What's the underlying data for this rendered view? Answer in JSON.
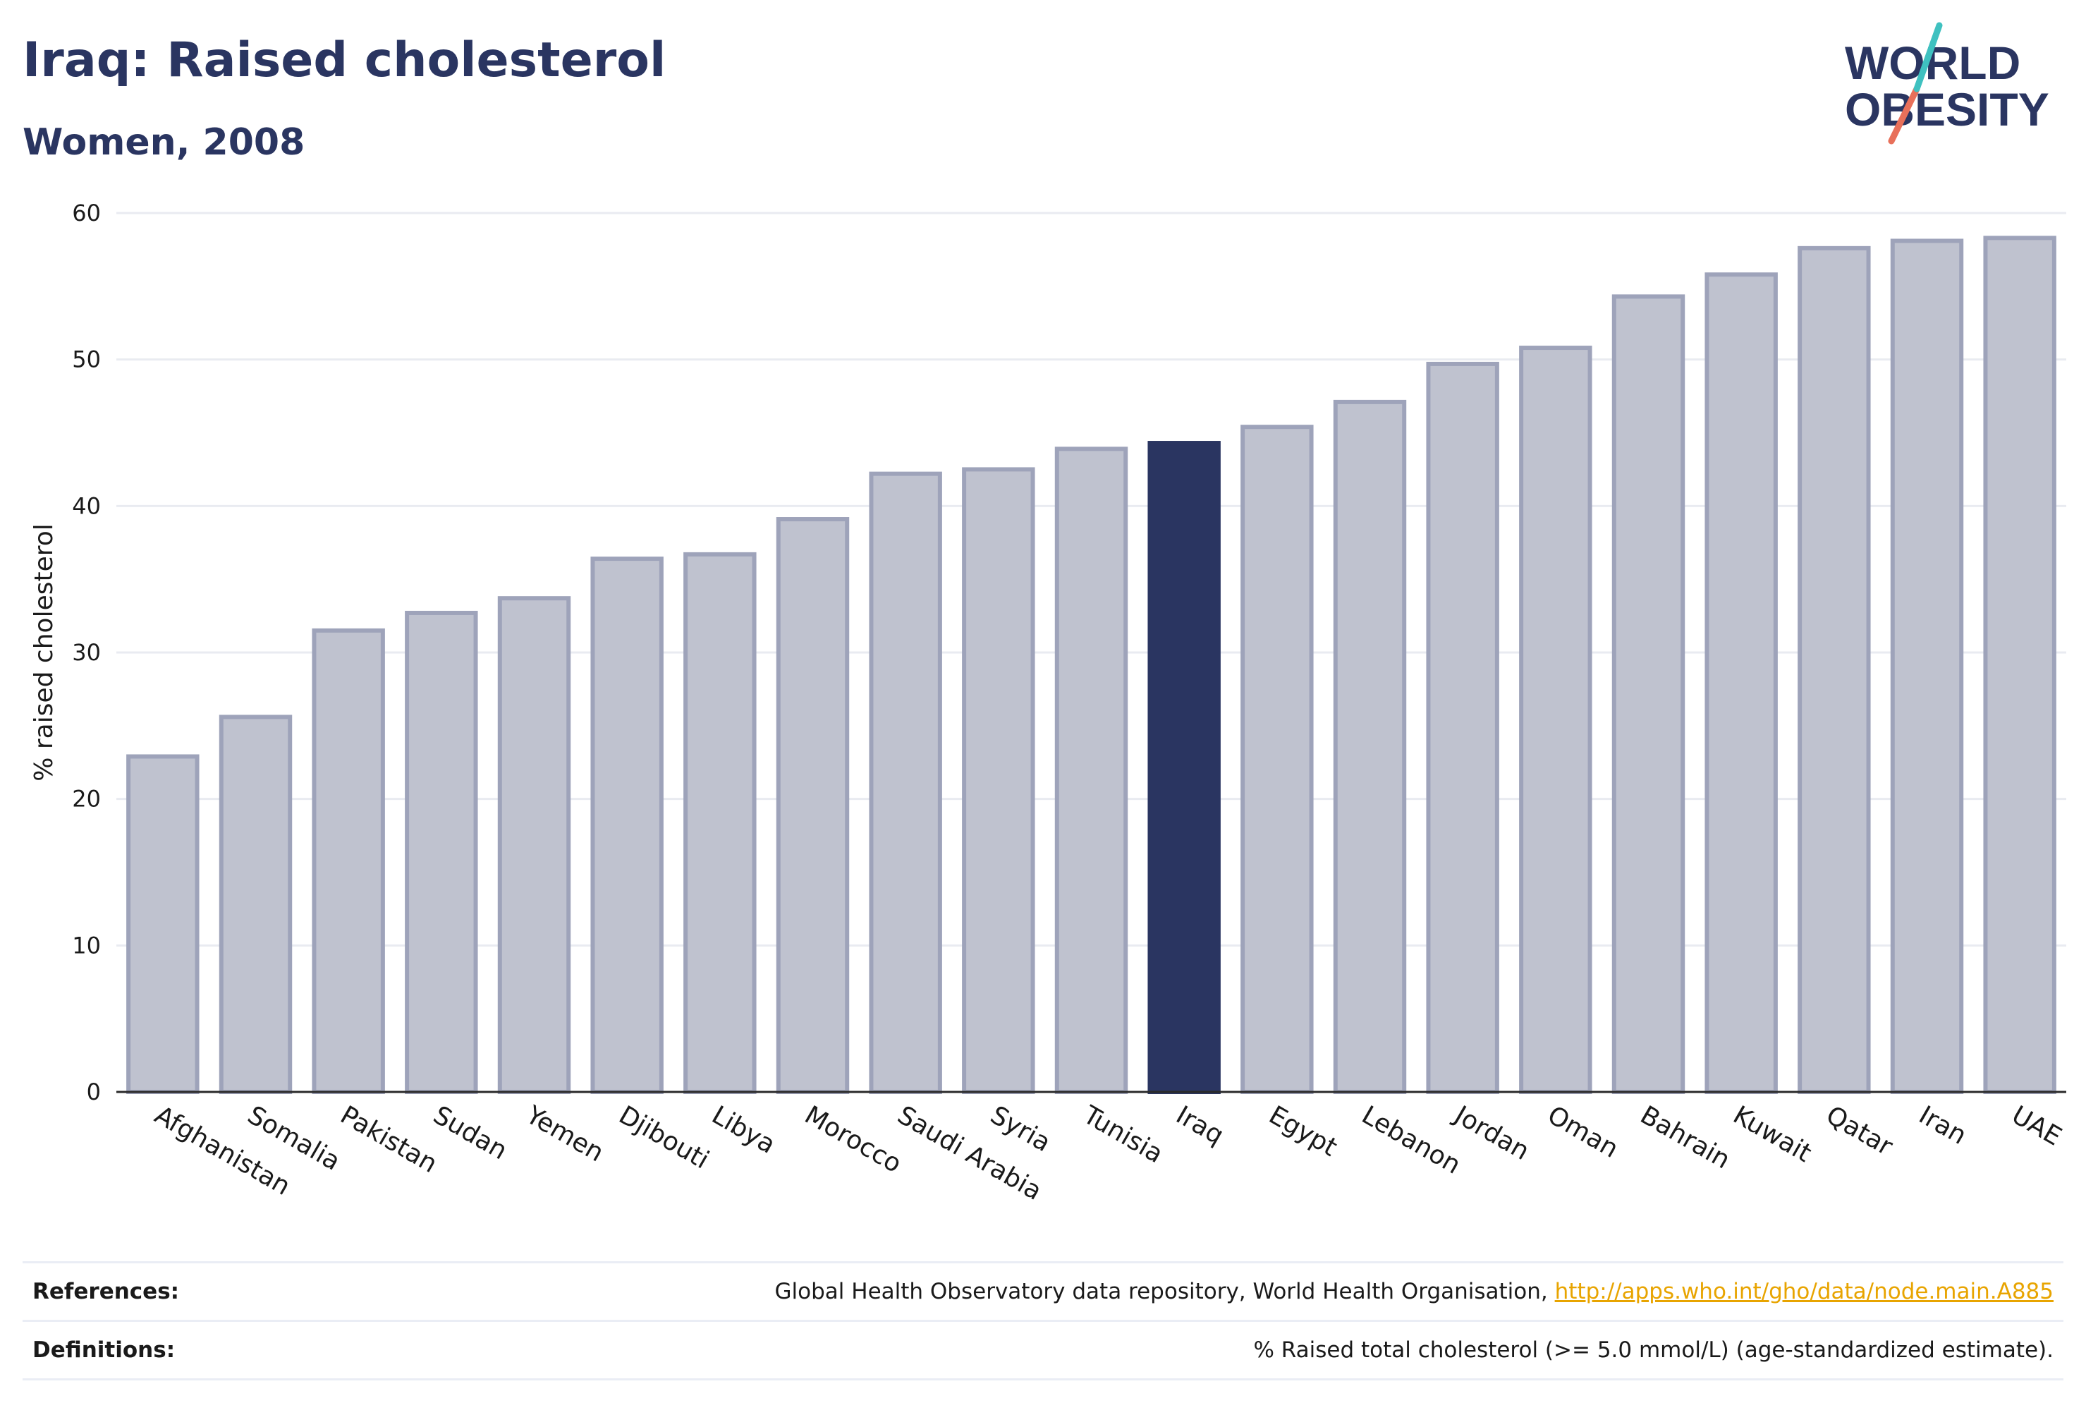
{
  "title": "Iraq: Raised cholesterol",
  "subtitle": "Women, 2008",
  "logo": {
    "line1": "WORLD",
    "line2": "OBESITY"
  },
  "colors": {
    "highlight": "#2a3561",
    "bar_fill": "#bfc2cf",
    "bar_stroke": "#9ea3ba",
    "text": "#2a3561",
    "link": "#e8a400"
  },
  "chart_data": {
    "type": "bar",
    "ylabel": "% raised cholesterol",
    "xlabel": "",
    "ylim": [
      0,
      60
    ],
    "yticks": [
      0,
      10,
      20,
      30,
      40,
      50,
      60
    ],
    "grid": true,
    "highlight": "Iraq",
    "categories": [
      "Afghanistan",
      "Somalia",
      "Pakistan",
      "Sudan",
      "Yemen",
      "Djibouti",
      "Libya",
      "Morocco",
      "Saudi Arabia",
      "Syria",
      "Tunisia",
      "Iraq",
      "Egypt",
      "Lebanon",
      "Jordan",
      "Oman",
      "Bahrain",
      "Kuwait",
      "Qatar",
      "Iran",
      "UAE"
    ],
    "values": [
      22.9,
      25.6,
      31.5,
      32.7,
      33.7,
      36.4,
      36.7,
      39.1,
      42.2,
      42.5,
      43.9,
      44.3,
      45.4,
      47.1,
      49.7,
      50.8,
      54.3,
      55.8,
      57.6,
      58.1,
      58.3
    ]
  },
  "references": {
    "label": "References:",
    "text": "Global Health Observatory data repository, World Health Organisation,",
    "link": "http://apps.who.int/gho/data/node.main.A885"
  },
  "definitions": {
    "label": "Definitions:",
    "text": "% Raised total cholesterol (>= 5.0 mmol/L) (age-standardized estimate)."
  }
}
